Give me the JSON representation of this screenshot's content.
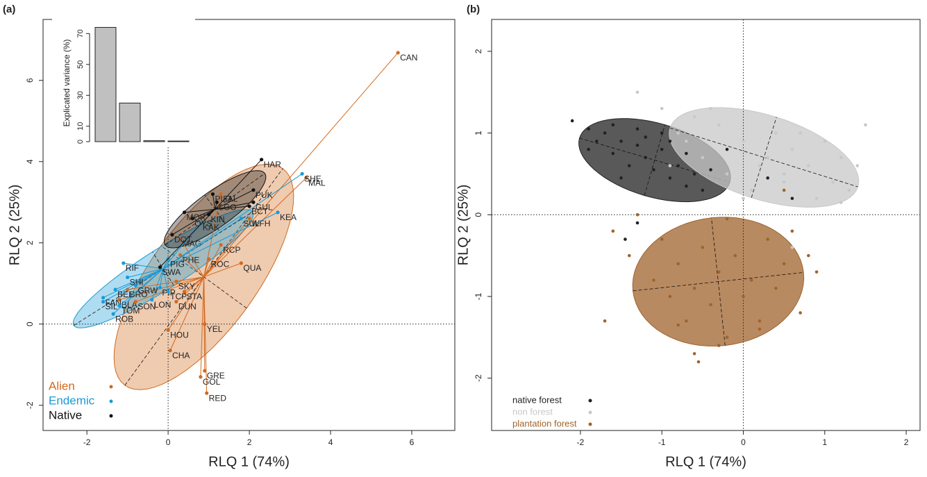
{
  "chart_data": [
    {
      "type": "scatter",
      "panel": "(a)",
      "x_label": "RLQ 1 (74%)",
      "y_label": "RLQ 2 (25%)",
      "xlim": [
        -3.08,
        7.06
      ],
      "ylim": [
        -2.62,
        7.5
      ],
      "xticks": [
        -2,
        0,
        2,
        4,
        6
      ],
      "yticks": [
        -2,
        0,
        2,
        4,
        6
      ],
      "series": [
        {
          "name": "Alien",
          "color": "#d2691e",
          "labels": [
            "CAN",
            "MAL",
            "FAL",
            "WFH",
            "MAG",
            "RCP",
            "PHE",
            "QUA",
            "ROC",
            "SKY",
            "STA",
            "BRO",
            "BLA",
            "SON",
            "DUN",
            "YEL",
            "HOU",
            "CHA",
            "GRE",
            "GOL",
            "RED"
          ],
          "x": [
            5.66,
            3.4,
            1.3,
            2.0,
            0.3,
            1.3,
            0.3,
            1.8,
            1.0,
            0.2,
            0.4,
            -1.0,
            -1.2,
            -0.8,
            0.2,
            0.9,
            0.0,
            0.05,
            0.9,
            0.8,
            0.95
          ],
          "values": [
            6.68,
            3.6,
            3.2,
            2.6,
            2.1,
            1.95,
            1.7,
            1.5,
            1.6,
            1.05,
            0.8,
            0.85,
            0.6,
            0.55,
            0.55,
            0.0,
            -0.15,
            -0.65,
            -1.15,
            -1.3,
            -1.7
          ]
        },
        {
          "name": "Endemic",
          "color": "#1a9ad6",
          "labels": [
            "SHE",
            "KEA",
            "SUL",
            "KAK",
            "PIG",
            "RIF",
            "SHI",
            "GRW",
            "PIP",
            "TCP",
            "BEL",
            "FAN",
            "LON",
            "SIL",
            "TOM",
            "ROB"
          ],
          "x": [
            3.3,
            2.7,
            1.8,
            0.8,
            0.0,
            -1.1,
            -1.0,
            -0.8,
            -0.2,
            0.0,
            -1.3,
            -1.6,
            -0.4,
            -1.6,
            -1.2,
            -1.35
          ],
          "values": [
            3.7,
            2.75,
            2.6,
            2.5,
            1.6,
            1.5,
            1.15,
            0.95,
            0.9,
            0.8,
            0.85,
            0.65,
            0.6,
            0.55,
            0.45,
            0.25
          ]
        },
        {
          "name": "Native",
          "color": "#111111",
          "labels": [
            "HAR",
            "PUK",
            "GUL",
            "BCT",
            "PLO",
            "LGO",
            "KIN",
            "OYS",
            "MOR",
            "DOT",
            "SWA"
          ],
          "x": [
            2.3,
            2.1,
            2.1,
            2.0,
            1.1,
            1.2,
            1.0,
            0.6,
            0.4,
            0.1,
            -0.2
          ],
          "values": [
            4.05,
            3.3,
            3.0,
            2.9,
            3.2,
            3.0,
            2.7,
            2.6,
            2.75,
            2.2,
            1.4
          ]
        }
      ]
    },
    {
      "type": "bar",
      "y_label": "Explicated variance (%)",
      "values": [
        74,
        25,
        0.6,
        0.4
      ],
      "color": "#c0c0c0",
      "ylim": [
        0,
        76
      ],
      "yticks": [
        0,
        10,
        30,
        50,
        70
      ]
    },
    {
      "type": "scatter",
      "panel": "(b)",
      "x_label": "RLQ 1 (74%)",
      "y_label": "RLQ 2 (25%)",
      "xlim": [
        -3.09,
        2.17
      ],
      "ylim": [
        -2.64,
        2.39
      ],
      "xticks": [
        -2,
        -1,
        0,
        1,
        2
      ],
      "yticks": [
        -2,
        -1,
        0,
        1,
        2
      ],
      "series": [
        {
          "name": "native forest",
          "color": "#222222",
          "x": [
            -2.1,
            -1.9,
            -1.8,
            -1.7,
            -1.6,
            -1.5,
            -1.4,
            -1.3,
            -1.2,
            -1.1,
            -1.0,
            -0.9,
            -0.8,
            -0.7,
            -0.6,
            -0.5,
            -1.9,
            -1.6,
            -1.3,
            -1.0,
            -0.7,
            -1.5,
            -1.2,
            -0.4,
            -0.2,
            0.3,
            0.6,
            -1.45,
            -1.3,
            -0.9
          ],
          "values": [
            1.15,
            1.05,
            0.9,
            1.0,
            0.75,
            0.9,
            0.6,
            0.85,
            0.7,
            0.55,
            0.8,
            0.45,
            0.6,
            0.35,
            0.5,
            0.3,
            0.8,
            1.1,
            1.05,
            1.0,
            0.75,
            0.45,
            0.95,
            0.55,
            0.8,
            0.45,
            0.2,
            -0.3,
            -0.1,
            0.9
          ]
        },
        {
          "name": "non forest",
          "color": "#c8c8c8",
          "x": [
            -1.0,
            -0.8,
            -0.6,
            -0.5,
            -0.3,
            -0.2,
            0.0,
            0.1,
            0.3,
            0.4,
            0.5,
            0.6,
            0.8,
            0.9,
            1.0,
            1.1,
            1.2,
            1.3,
            1.4,
            -1.3,
            -0.4,
            0.2,
            0.7,
            1.5,
            -0.7,
            0.0,
            0.5,
            1.2,
            -0.9,
            0.6
          ],
          "values": [
            1.3,
            1.0,
            1.2,
            0.7,
            1.1,
            0.5,
            0.9,
            0.3,
            0.7,
            1.0,
            0.4,
            0.8,
            0.6,
            0.2,
            0.9,
            0.4,
            0.7,
            0.3,
            0.6,
            1.5,
            1.3,
            0.6,
            1.0,
            1.1,
            0.9,
            0.2,
            0.5,
            0.15,
            0.6,
            -0.4
          ]
        },
        {
          "name": "plantation forest",
          "color": "#a0632c",
          "x": [
            -1.6,
            -1.4,
            -1.3,
            -1.1,
            -1.0,
            -0.9,
            -0.8,
            -0.7,
            -0.6,
            -0.5,
            -0.4,
            -0.3,
            -0.2,
            -0.1,
            0.0,
            0.1,
            0.2,
            0.3,
            0.4,
            0.5,
            0.6,
            0.7,
            0.8,
            -0.55,
            -0.6,
            -0.3,
            0.2,
            -0.8,
            0.5,
            -0.2,
            -1.7,
            0.9
          ],
          "values": [
            -0.2,
            -0.5,
            0.0,
            -0.8,
            -0.3,
            -1.0,
            -0.6,
            -1.3,
            -0.9,
            -0.4,
            -1.1,
            -0.7,
            -1.5,
            -0.5,
            -1.0,
            -0.8,
            -1.3,
            -0.3,
            -0.9,
            -0.6,
            -0.2,
            -1.2,
            -0.5,
            -1.8,
            -1.7,
            -1.6,
            -1.4,
            -1.35,
            0.3,
            -0.05,
            -1.3,
            -0.7
          ]
        }
      ]
    }
  ]
}
